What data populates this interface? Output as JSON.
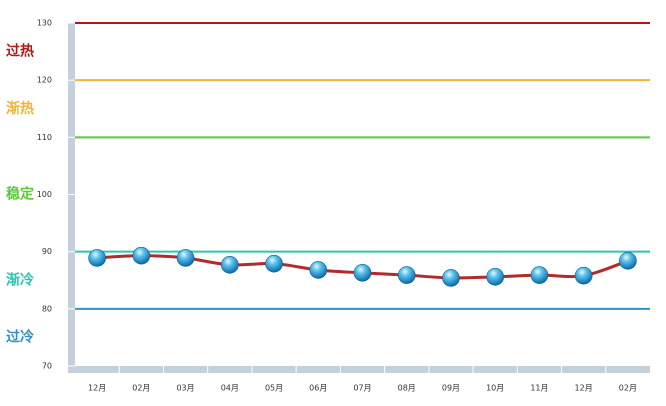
{
  "chart_data": {
    "type": "line",
    "categories": [
      "12月",
      "02月",
      "03月",
      "04月",
      "05月",
      "06月",
      "07月",
      "08月",
      "09月",
      "10月",
      "11月",
      "12月",
      "02月"
    ],
    "series": [
      {
        "color": "#b22a2a",
        "values": [
          88.9,
          89.3,
          88.9,
          87.7,
          87.9,
          86.8,
          86.3,
          85.9,
          85.4,
          85.6,
          85.9,
          85.8,
          88.4
        ]
      }
    ],
    "ylim": [
      70,
      130
    ],
    "yticks": [
      70,
      80,
      90,
      100,
      110,
      120,
      130
    ],
    "zones": [
      {
        "label": "过热",
        "color": "#b01818",
        "line": 130
      },
      {
        "label": "渐热",
        "color": "#f0b43a",
        "line": 120
      },
      {
        "label": "稳定",
        "color": "#5cc83a",
        "line": 110
      },
      {
        "label": "渐冷",
        "color": "#2ec4b0",
        "line": 90
      },
      {
        "label": "过冷",
        "color": "#2f8fcf",
        "line": 80
      }
    ]
  }
}
